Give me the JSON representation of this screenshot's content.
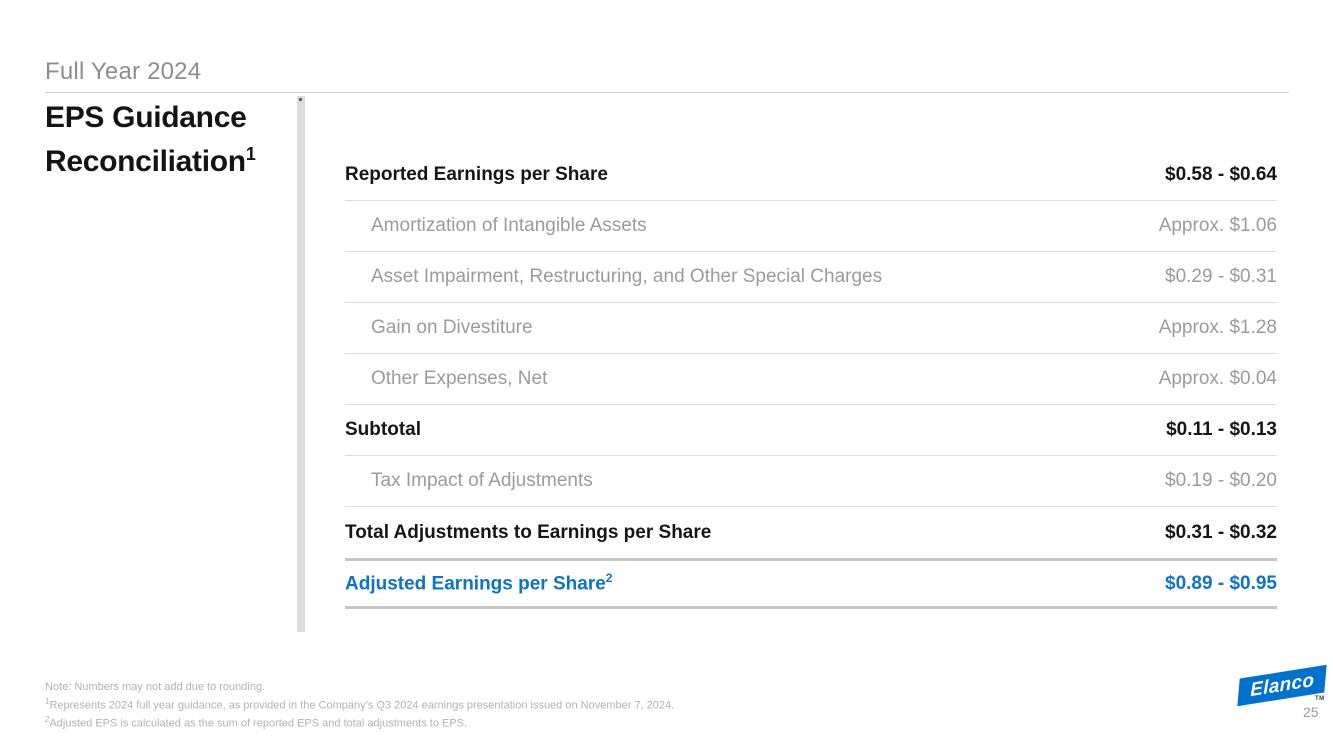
{
  "header": {
    "eyebrow": "Full Year 2024",
    "title_line1": "EPS Guidance",
    "title_line2": "Reconciliation",
    "title_sup": "1"
  },
  "table": {
    "rows": [
      {
        "label": "Reported Earnings per Share",
        "sup": "",
        "value": "$0.58 - $0.64",
        "style": "bold"
      },
      {
        "label": "Amortization of Intangible Assets",
        "sup": "",
        "value": "Approx. $1.06",
        "style": "sub"
      },
      {
        "label": "Asset Impairment, Restructuring, and Other Special Charges",
        "sup": "",
        "value": "$0.29 - $0.31",
        "style": "sub"
      },
      {
        "label": "Gain on Divestiture",
        "sup": "",
        "value": "Approx. $1.28",
        "style": "sub"
      },
      {
        "label": "Other Expenses, Net",
        "sup": "",
        "value": "Approx. $0.04",
        "style": "sub"
      },
      {
        "label": "Subtotal",
        "sup": "",
        "value": "$0.11 - $0.13",
        "style": "bold"
      },
      {
        "label": "Tax Impact of Adjustments",
        "sup": "",
        "value": "$0.19 - $0.20",
        "style": "sub"
      },
      {
        "label": "Total Adjustments to Earnings per Share",
        "sup": "",
        "value": "$0.31 - $0.32",
        "style": "bold"
      },
      {
        "label": "Adjusted Earnings per Share",
        "sup": "2",
        "value": "$0.89 - $0.95",
        "style": "accent"
      }
    ]
  },
  "footnotes": [
    {
      "sup": "",
      "text": "Note: Numbers may not add due to rounding."
    },
    {
      "sup": "1",
      "text": "Represents 2024 full year guidance, as provided in the Company’s Q3 2024 earnings presentation issued on November 7, 2024."
    },
    {
      "sup": "2",
      "text": "Adjusted EPS is calculated as the sum of reported EPS and total adjustments to EPS."
    }
  ],
  "footer": {
    "logo_text": "Elanco",
    "trademark": "TM",
    "page_number": "25"
  },
  "colors": {
    "accent_blue": "#0e72c5",
    "logo_blue": "#0072ce",
    "text_dark": "#161616",
    "text_gray": "#9b9b9b",
    "eyebrow_gray": "#8d8d8d",
    "footnote_gray": "#b2b2b2",
    "divider_light": "#dcdcdc",
    "divider_thick": "#c6c6c6"
  }
}
